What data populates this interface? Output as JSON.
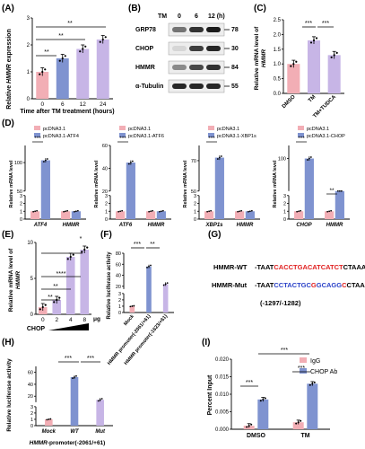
{
  "colors": {
    "pink": "#f2aeb5",
    "blue": "#7f93d0",
    "lavender": "#c7b5e6",
    "red_seq": "#e02020",
    "blue_seq": "#2c43c8",
    "axis": "#000000"
  },
  "panels": {
    "A": {
      "letter": "(A)",
      "ylabel_pre": "Relative ",
      "ylabel_gene": "HMMR",
      "ylabel_post": " expression",
      "xlabel": "Time after TM treatment (hours)",
      "sig": [
        "**",
        "**",
        "**"
      ]
    },
    "B": {
      "letter": "(B)",
      "tm_label": "TM",
      "times": [
        "0",
        "6",
        "12 (h)"
      ],
      "rows": [
        {
          "name": "GRP78",
          "kda": "78"
        },
        {
          "name": "CHOP",
          "kda": "30"
        },
        {
          "name": "HMMR",
          "kda": "84"
        },
        {
          "name": "α-Tubulin",
          "kda": "55"
        }
      ]
    },
    "C": {
      "letter": "(C)",
      "ylabel_1": "Relative mRNA level of",
      "ylabel_2": "HMMR",
      "sig": [
        "***",
        "***"
      ]
    },
    "D": {
      "letter": "(D)",
      "ylabel": "Relative mRNA level",
      "sig": [
        "***",
        "***",
        "***",
        "***",
        "**"
      ]
    },
    "E": {
      "letter": "(E)",
      "ylabel_1": "Relative mRNA level of",
      "ylabel_2": "HMMR",
      "xlabel": "CHOP",
      "unit": "μg",
      "sig": [
        "**",
        "**",
        "****",
        "*"
      ]
    },
    "F": {
      "letter": "(F)",
      "ylabel": "Relative luciferase activity",
      "sig": [
        "***",
        "**"
      ]
    },
    "G": {
      "letter": "(G)",
      "wt_label": "HMMR-WT",
      "mut_label": "HMMR-Mut",
      "wt_seq": [
        {
          "t": "-TAAT",
          "c": "k"
        },
        {
          "t": "CACCTGACATCATCT",
          "c": "r"
        },
        {
          "t": "CTAAA-",
          "c": "k"
        }
      ],
      "mut_seq": [
        {
          "t": "-TAAT",
          "c": "k"
        },
        {
          "t": "CCTACTGC",
          "c": "b"
        },
        {
          "t": "G",
          "c": "r"
        },
        {
          "t": "GCAGG",
          "c": "b"
        },
        {
          "t": "C",
          "c": "r"
        },
        {
          "t": "CTAAA-",
          "c": "k"
        }
      ],
      "position": "(-1297/-1282)"
    },
    "H": {
      "letter": "(H)",
      "ylabel": "Relative luciferase activity",
      "xlabel_gene": "HMMR",
      "xlabel_rest": "-promoter(-2061/+61)",
      "sig": [
        "***",
        "***"
      ]
    },
    "I": {
      "letter": "(I)",
      "ylabel": "Percent Input",
      "legend": [
        "IgG",
        "CHOP Ab"
      ],
      "sig": [
        "***",
        "***",
        "***"
      ]
    }
  },
  "chart_data": [
    {
      "panel": "A",
      "type": "bar",
      "categories": [
        "0",
        "6",
        "12",
        "24"
      ],
      "values": [
        1.0,
        1.5,
        1.85,
        2.2
      ],
      "ylim": [
        0,
        3
      ],
      "yticks": [
        0,
        1,
        2,
        3
      ],
      "xlabel": "Time after TM treatment (hours)",
      "ylabel": "Relative HMMR expression"
    },
    {
      "panel": "C",
      "type": "bar",
      "categories": [
        "DMSO",
        "TM",
        "TM+TUDCA"
      ],
      "values": [
        1.0,
        1.8,
        1.3
      ],
      "ylim": [
        0,
        2.5
      ],
      "yticks": [
        0.0,
        0.5,
        1.0,
        1.5,
        2.0,
        2.5
      ],
      "ylabel": "Relative mRNA level of HMMR"
    },
    {
      "panel": "D1",
      "type": "bar",
      "categories": [
        "ATF4",
        "HMMR"
      ],
      "legend": [
        "pcDNA3.1",
        "pcDNA3.1-ATF4"
      ],
      "series": [
        {
          "name": "pcDNA3.1",
          "values": [
            1,
            1
          ]
        },
        {
          "name": "pcDNA3.1-ATF4",
          "values": [
            104,
            1
          ]
        }
      ],
      "ylim": [
        0,
        130
      ],
      "yticks": [
        0,
        1,
        2,
        3,
        50,
        100,
        150
      ],
      "axis_break": [
        3,
        50
      ]
    },
    {
      "panel": "D2",
      "type": "bar",
      "categories": [
        "ATF6",
        "HMMR"
      ],
      "legend": [
        "pcDNA3.1",
        "pcDNA3.1-ATF6"
      ],
      "series": [
        {
          "name": "pcDNA3.1",
          "values": [
            1,
            1
          ]
        },
        {
          "name": "pcDNA3.1-ATF6",
          "values": [
            45,
            1
          ]
        }
      ],
      "ylim": [
        0,
        60
      ],
      "yticks": [
        0,
        1,
        2,
        3,
        20,
        40,
        60
      ],
      "axis_break": [
        3,
        20
      ]
    },
    {
      "panel": "D3",
      "type": "bar",
      "categories": [
        "XBP1s",
        "HMMR"
      ],
      "legend": [
        "pcDNA3.1",
        "pcDNA3.1-XBP1s"
      ],
      "series": [
        {
          "name": "pcDNA3.1",
          "values": [
            1,
            1
          ]
        },
        {
          "name": "pcDNA3.1-XBP1s",
          "values": [
            72,
            1
          ]
        }
      ],
      "ylim": [
        0,
        80
      ],
      "yticks": [
        0,
        1,
        2,
        3,
        50,
        70,
        90
      ],
      "axis_break": [
        3,
        50
      ]
    },
    {
      "panel": "D4",
      "type": "bar",
      "categories": [
        "CHOP",
        "HMMR"
      ],
      "legend": [
        "pcDNA3.1",
        "pcDNA3.1-CHOP"
      ],
      "series": [
        {
          "name": "pcDNA3.1",
          "values": [
            1,
            1
          ]
        },
        {
          "name": "pcDNA3.1-CHOP",
          "values": [
            100,
            7
          ]
        }
      ],
      "ylim": [
        0,
        120
      ],
      "yticks": [
        0,
        1,
        2,
        3,
        5,
        10,
        100,
        150
      ],
      "axis_break": [
        3,
        50
      ]
    },
    {
      "panel": "E",
      "type": "bar",
      "categories": [
        "0",
        "2",
        "4",
        "8"
      ],
      "values": [
        1.0,
        2.0,
        8.0,
        9.0
      ],
      "ylim": [
        0,
        10
      ],
      "yticks": [
        0,
        5,
        10
      ],
      "xlabel": "CHOP",
      "unit": "μg"
    },
    {
      "panel": "F",
      "type": "bar",
      "categories": [
        "Mock",
        "HMMR promoter(-2061/+61)",
        "HMMR promoter(-1623/+61)"
      ],
      "values": [
        1,
        56,
        24
      ],
      "ylim": [
        0,
        80
      ],
      "yticks": [
        0,
        1,
        2,
        3,
        20,
        40,
        60,
        80
      ],
      "axis_break": [
        3,
        15
      ]
    },
    {
      "panel": "H",
      "type": "bar",
      "categories": [
        "Mock",
        "WT",
        "Mut"
      ],
      "values": [
        1,
        52,
        14
      ],
      "ylim": [
        0,
        70
      ],
      "yticks": [
        0,
        1,
        2,
        3,
        20,
        40,
        60
      ],
      "axis_break": [
        3,
        10
      ]
    },
    {
      "panel": "I",
      "type": "bar",
      "categories": [
        "DMSO",
        "TM"
      ],
      "series": [
        {
          "name": "IgG",
          "values": [
            0.001,
            0.002
          ]
        },
        {
          "name": "CHOP Ab",
          "values": [
            0.0085,
            0.013
          ]
        }
      ],
      "ylim": [
        0,
        0.02
      ],
      "yticks": [
        0.0,
        0.005,
        0.01,
        0.015,
        0.02
      ],
      "ylabel": "Percent Input"
    }
  ]
}
